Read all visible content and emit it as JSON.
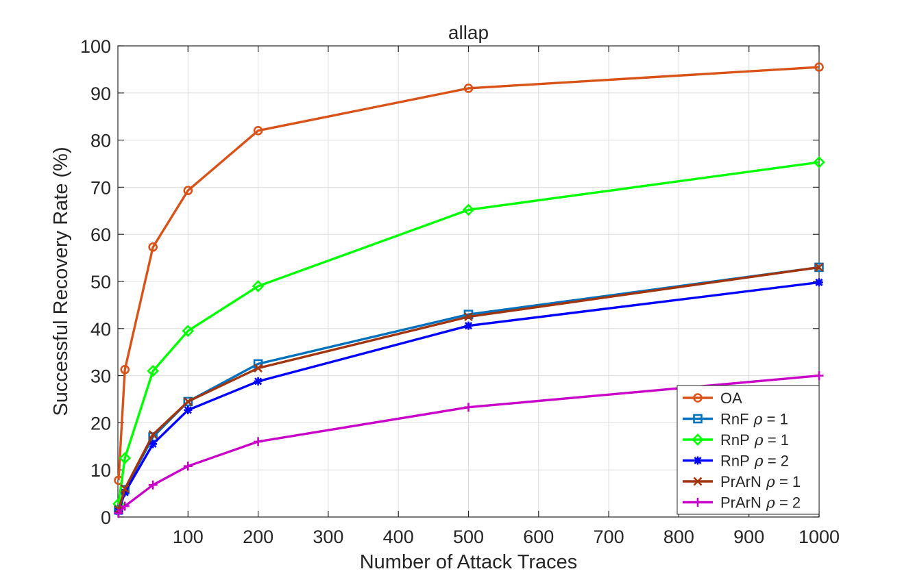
{
  "chart_data": {
    "type": "line",
    "title": "allap",
    "xlabel": "Number of Attack Traces",
    "ylabel": "Successful Recovery Rate (%)",
    "xlim": [
      0,
      1000
    ],
    "ylim": [
      0,
      100
    ],
    "xticks": [
      100,
      200,
      300,
      400,
      500,
      600,
      700,
      800,
      900,
      1000
    ],
    "yticks": [
      0,
      10,
      20,
      30,
      40,
      50,
      60,
      70,
      80,
      90,
      100
    ],
    "grid": true,
    "legend_position": "bottom-right",
    "x": [
      1,
      10,
      50,
      100,
      200,
      500,
      1000
    ],
    "series": [
      {
        "name": "OA",
        "legend_prefix": "OA",
        "legend_rho": "",
        "color": "#d95319",
        "marker": "circle",
        "values": [
          7.8,
          31.3,
          57.3,
          69.3,
          82.0,
          91.0,
          95.5
        ]
      },
      {
        "name": "RnF ρ = 1",
        "legend_prefix": "RnF",
        "legend_rho": "1",
        "color": "#0072bd",
        "marker": "square",
        "values": [
          1.5,
          5.8,
          17.0,
          24.5,
          32.5,
          43.0,
          53.0
        ]
      },
      {
        "name": "RnP ρ = 1",
        "legend_prefix": "RnP",
        "legend_rho": "1",
        "color": "#00ff00",
        "marker": "diamond",
        "values": [
          2.8,
          12.5,
          31.0,
          39.5,
          49.0,
          65.2,
          75.3
        ]
      },
      {
        "name": "RnP ρ = 2",
        "legend_prefix": "RnP",
        "legend_rho": "2",
        "color": "#0000ff",
        "marker": "asterisk",
        "values": [
          1.2,
          5.2,
          15.5,
          22.7,
          28.8,
          40.6,
          49.8
        ]
      },
      {
        "name": "PrArN ρ = 1",
        "legend_prefix": "PrArN",
        "legend_rho": "1",
        "color": "#a2340e",
        "marker": "cross",
        "values": [
          1.6,
          6.0,
          17.5,
          24.5,
          31.6,
          42.5,
          53.0
        ]
      },
      {
        "name": "PrArN ρ = 2",
        "legend_prefix": "PrArN",
        "legend_rho": "2",
        "color": "#c800c8",
        "marker": "plus",
        "values": [
          0.8,
          2.3,
          6.8,
          10.8,
          16.0,
          23.3,
          30.0
        ]
      }
    ]
  }
}
